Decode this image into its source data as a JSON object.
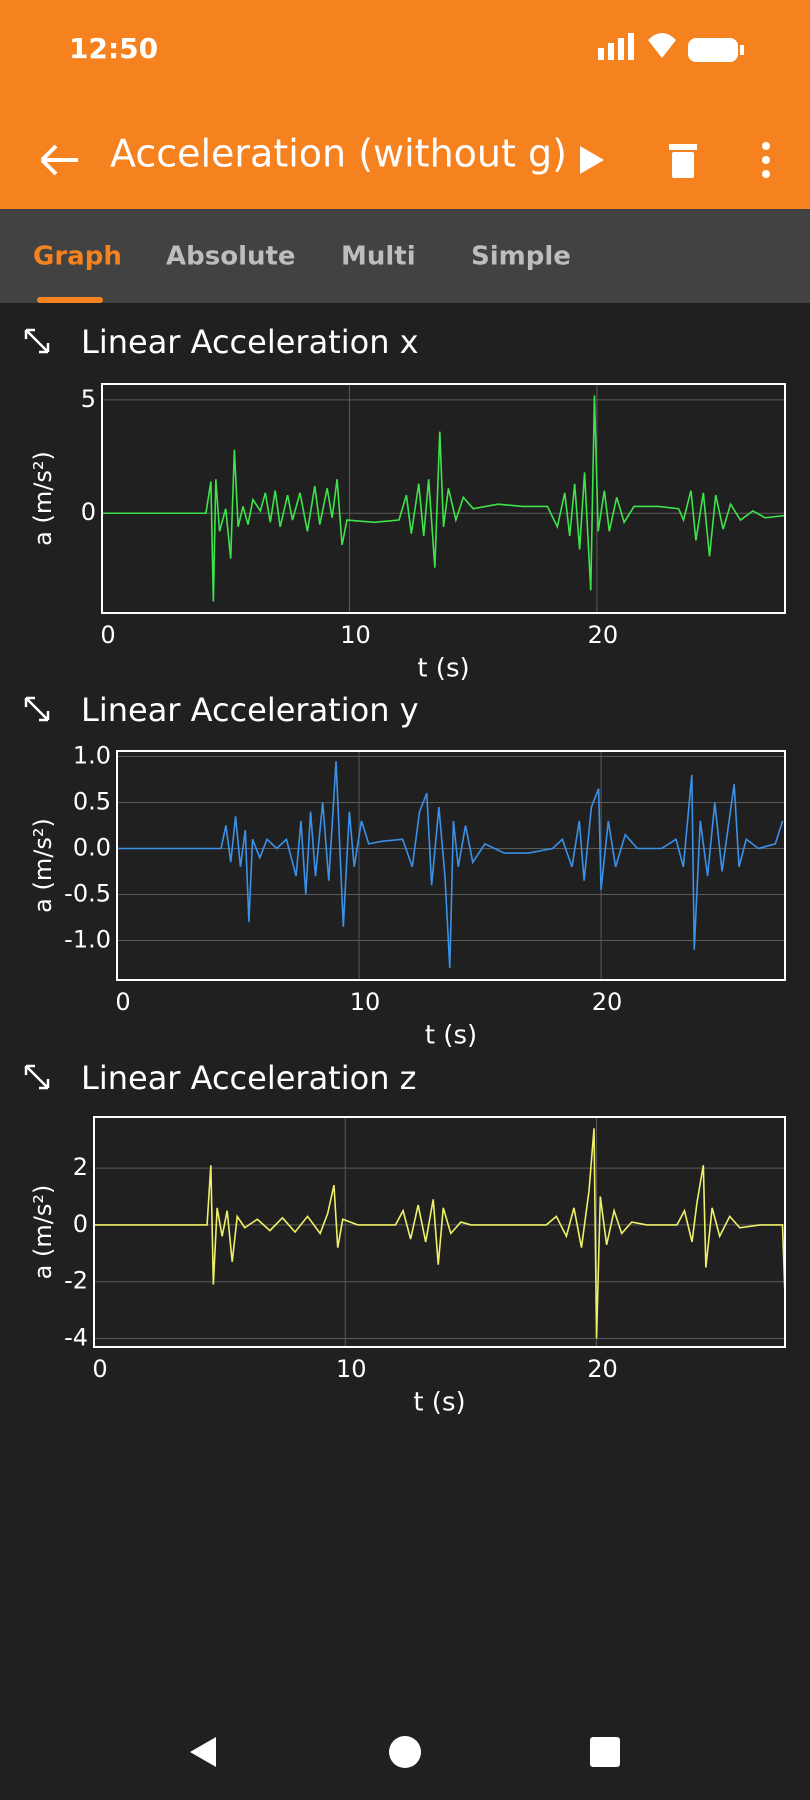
{
  "status_bar": {
    "time": "12:50"
  },
  "app_bar": {
    "title": "Acceleration (without g)"
  },
  "tabs": [
    "Graph",
    "Absolute",
    "Multi",
    "Simple"
  ],
  "chart_data": [
    {
      "type": "line",
      "title": "Linear Acceleration x",
      "x_label": "t (s)",
      "y_label": "a (m/s²)",
      "color": "#3ee34a",
      "grid": true,
      "xlim": [
        0,
        27.6
      ],
      "ylim": [
        -4.4,
        5.7
      ],
      "xticks": [
        0,
        10,
        20
      ],
      "yticks": [
        0,
        5
      ],
      "x": [
        0,
        2,
        4.2,
        4.4,
        4.5,
        4.6,
        4.75,
        5.0,
        5.2,
        5.35,
        5.5,
        5.7,
        5.9,
        6.1,
        6.4,
        6.6,
        6.8,
        7.0,
        7.2,
        7.5,
        7.7,
        8.0,
        8.3,
        8.6,
        8.8,
        9.1,
        9.3,
        9.5,
        9.7,
        9.9,
        11,
        12,
        12.3,
        12.5,
        12.8,
        13.0,
        13.2,
        13.45,
        13.65,
        13.8,
        14.0,
        14.3,
        14.6,
        15,
        16,
        17,
        18.0,
        18.4,
        18.7,
        18.9,
        19.1,
        19.3,
        19.5,
        19.75,
        19.9,
        20.05,
        20.3,
        20.5,
        20.8,
        21.1,
        21.5,
        22.5,
        23.3,
        23.5,
        23.8,
        24.0,
        24.3,
        24.55,
        24.8,
        25.1,
        25.4,
        25.8,
        26.3,
        26.8,
        27.6
      ],
      "values": [
        0,
        0,
        0,
        1.4,
        -3.9,
        1.5,
        -0.8,
        0.2,
        -2.0,
        2.8,
        -0.6,
        0.3,
        -0.5,
        0.6,
        0.1,
        0.9,
        -0.4,
        1.0,
        -0.6,
        0.8,
        -0.3,
        0.9,
        -0.8,
        1.2,
        -0.5,
        1.1,
        -0.2,
        1.5,
        -1.4,
        -0.3,
        -0.4,
        -0.3,
        0.8,
        -0.9,
        1.3,
        -1.0,
        1.5,
        -2.4,
        3.6,
        -0.6,
        1.1,
        -0.3,
        0.7,
        0.2,
        0.4,
        0.3,
        0.3,
        -0.6,
        0.9,
        -1.0,
        1.3,
        -1.6,
        1.8,
        -3.4,
        5.2,
        -0.8,
        1.0,
        -0.8,
        0.7,
        -0.4,
        0.3,
        0.3,
        0.2,
        -0.3,
        1.0,
        -1.2,
        0.9,
        -1.9,
        0.8,
        -0.7,
        0.4,
        -0.3,
        0.1,
        -0.2,
        -0.1
      ]
    },
    {
      "type": "line",
      "title": "Linear Acceleration y",
      "x_label": "t (s)",
      "y_label": "a (m/s²)",
      "color": "#3b90e8",
      "grid": true,
      "xlim": [
        0,
        27.6
      ],
      "ylim": [
        -1.43,
        1.06
      ],
      "xticks": [
        0,
        10,
        20
      ],
      "yticks": [
        {
          "value": -1,
          "label": "-1.0"
        },
        -0.5,
        {
          "value": 0,
          "label": "0.0"
        },
        0.5,
        {
          "value": 1,
          "label": "1.0"
        }
      ],
      "x": [
        0,
        2,
        4.3,
        4.5,
        4.7,
        4.9,
        5.1,
        5.3,
        5.45,
        5.6,
        5.9,
        6.2,
        6.6,
        7.0,
        7.4,
        7.6,
        7.8,
        8.0,
        8.2,
        8.5,
        8.75,
        9.05,
        9.35,
        9.6,
        9.8,
        10.1,
        10.4,
        11,
        11.8,
        12.2,
        12.5,
        12.8,
        13.0,
        13.3,
        13.55,
        13.75,
        13.9,
        14.1,
        14.4,
        14.7,
        15.2,
        16,
        17,
        18,
        18.4,
        18.8,
        19.1,
        19.3,
        19.6,
        19.9,
        20.0,
        20.3,
        20.6,
        21.0,
        21.5,
        22.5,
        23.1,
        23.4,
        23.75,
        23.85,
        24.1,
        24.4,
        24.7,
        25.0,
        25.5,
        25.7,
        26.0,
        26.5,
        27.2,
        27.5
      ],
      "values": [
        0,
        0,
        0,
        0.25,
        -0.15,
        0.35,
        -0.2,
        0.2,
        -0.8,
        0.1,
        -0.1,
        0.1,
        0,
        0.1,
        -0.3,
        0.3,
        -0.5,
        0.4,
        -0.3,
        0.5,
        -0.35,
        0.95,
        -0.85,
        0.4,
        -0.2,
        0.3,
        0.05,
        0.08,
        0.1,
        -0.2,
        0.4,
        0.6,
        -0.4,
        0.45,
        -0.3,
        -1.3,
        0.3,
        -0.2,
        0.25,
        -0.15,
        0.05,
        -0.05,
        -0.05,
        0,
        0.1,
        -0.2,
        0.3,
        -0.35,
        0.45,
        0.65,
        -0.45,
        0.3,
        -0.2,
        0.15,
        0,
        0,
        0.1,
        -0.2,
        0.8,
        -1.1,
        0.3,
        -0.3,
        0.5,
        -0.25,
        0.7,
        -0.2,
        0.1,
        0,
        0.05,
        0.3
      ]
    },
    {
      "type": "line",
      "title": "Linear Acceleration z",
      "x_label": "t (s)",
      "y_label": "a (m/s²)",
      "color": "#eef068",
      "grid": true,
      "xlim": [
        0,
        27.5
      ],
      "ylim": [
        -4.3,
        3.8
      ],
      "xticks": [
        0,
        10,
        20
      ],
      "yticks": [
        -4,
        -2,
        0,
        2
      ],
      "x": [
        0,
        4.5,
        4.65,
        4.75,
        4.9,
        5.1,
        5.3,
        5.5,
        5.7,
        6.0,
        6.5,
        7.0,
        7.5,
        8.0,
        8.5,
        9.0,
        9.3,
        9.55,
        9.7,
        9.9,
        10.5,
        12,
        12.3,
        12.6,
        12.9,
        13.2,
        13.5,
        13.7,
        13.9,
        14.2,
        14.6,
        15,
        18,
        18.4,
        18.8,
        19.1,
        19.4,
        19.7,
        19.9,
        20.0,
        20.15,
        20.4,
        20.7,
        21.0,
        21.4,
        22,
        23.2,
        23.5,
        23.8,
        24.0,
        24.25,
        24.35,
        24.6,
        24.9,
        25.3,
        25.7,
        26.5,
        27.4,
        27.5
      ],
      "values": [
        0,
        0,
        2.1,
        -2.1,
        0.6,
        -0.4,
        0.5,
        -1.3,
        0.3,
        -0.1,
        0.2,
        -0.2,
        0.25,
        -0.25,
        0.3,
        -0.3,
        0.4,
        1.4,
        -0.8,
        0.2,
        0,
        0,
        0.5,
        -0.5,
        0.7,
        -0.6,
        0.9,
        -1.4,
        0.6,
        -0.3,
        0.1,
        0,
        0,
        0.3,
        -0.4,
        0.6,
        -0.8,
        1.2,
        3.4,
        -4.0,
        1.0,
        -0.7,
        0.5,
        -0.3,
        0.1,
        0,
        0,
        0.5,
        -0.6,
        0.8,
        2.1,
        -1.5,
        0.6,
        -0.4,
        0.3,
        -0.1,
        0,
        0,
        -2.5
      ]
    }
  ]
}
